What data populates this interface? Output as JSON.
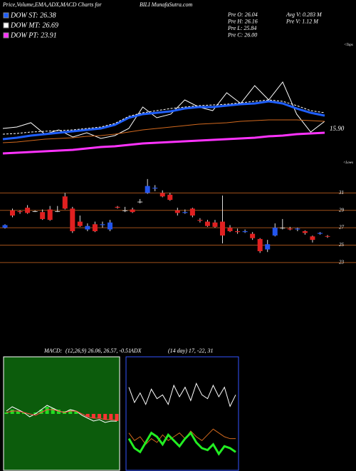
{
  "header": {
    "left": "Price,Volume,EMA,ADX,MACD Charts for",
    "right": "BILI MunafaSutra.com"
  },
  "stats": [
    [
      "Pre O: 26.04",
      "Avg V: 0.283 M"
    ],
    [
      "Pre H: 26.16",
      "Pre V: 1.12 M"
    ],
    [
      "Pre L: 25.84"
    ],
    [
      "Pre C: 26.00"
    ]
  ],
  "chart_data": [
    {
      "type": "line",
      "ylim": [
        12,
        36
      ],
      "annotations": [
        "15.90",
        "<Tops",
        "<Lows"
      ],
      "series": [
        {
          "color": "#ffffff",
          "style": "line",
          "values": [
            20,
            20.27,
            21.07,
            18.93,
            19.73,
            18.4,
            19.2,
            18.13,
            18.67,
            20,
            24,
            22,
            22.67,
            25.33,
            24,
            23.33,
            26.67,
            24.67,
            28,
            25.33,
            28.67,
            22.67,
            19.33,
            21.33
          ]
        },
        {
          "name": "DOW ST: 26.38",
          "color": "#1f5fff",
          "style": "thick",
          "values": [
            18,
            18.27,
            18.67,
            18.93,
            19.2,
            19.47,
            19.73,
            20,
            20.67,
            22,
            22.67,
            22.93,
            23.2,
            23.73,
            24,
            24,
            24.27,
            24.53,
            24.67,
            25.07,
            24.67,
            23.73,
            22.93,
            22.4
          ]
        },
        {
          "name": "DOW MT: 26.69",
          "color": "#ffffff",
          "style": "dashed",
          "values": [
            18.93,
            19.07,
            19.33,
            19.47,
            19.6,
            19.73,
            20,
            20.27,
            20.93,
            22.27,
            22.93,
            23.33,
            23.73,
            24,
            24.27,
            24.4,
            24.53,
            24.8,
            25.07,
            25.33,
            25.07,
            24.27,
            23.33,
            22.93
          ]
        },
        {
          "color": "#d2691e",
          "style": "line",
          "values": [
            17.33,
            17.47,
            17.73,
            18,
            18.13,
            18.27,
            18.53,
            18.67,
            18.93,
            19.33,
            19.73,
            20,
            20.27,
            20.53,
            20.8,
            20.93,
            21.07,
            21.33,
            21.47,
            21.6,
            21.6,
            21.6,
            21.47,
            21.33
          ]
        },
        {
          "name": "DOW PT: 23.91",
          "color": "#ff33ff",
          "style": "thick",
          "values": [
            15.33,
            15.47,
            15.6,
            15.73,
            15.87,
            16,
            16.27,
            16.53,
            16.67,
            16.93,
            17.2,
            17.33,
            17.47,
            17.6,
            17.73,
            17.87,
            18,
            18.13,
            18.27,
            18.53,
            18.67,
            18.93,
            19.07,
            19.2
          ]
        }
      ]
    },
    {
      "type": "candlestick",
      "ylim": [
        22,
        33
      ],
      "yticks": [
        31,
        29,
        27,
        25,
        23
      ],
      "grid_color": "#a0501a",
      "up_color": "#2255ee",
      "down_color": "#e02020",
      "open": [
        27.0,
        29.0,
        28.9,
        29.3,
        28.9,
        28.8,
        29.1,
        28.9,
        30.6,
        29.2,
        27.7,
        26.8,
        27.4,
        27.3,
        26.8,
        29.4,
        29.0,
        29.1,
        30.0,
        31.0,
        31.5,
        31.0,
        30.8,
        29.0,
        28.7,
        29.2,
        27.9,
        27.7,
        27.6,
        27.7,
        27.0,
        26.6,
        26.5,
        26.3,
        25.7,
        24.5,
        26.1,
        27.0,
        26.9,
        26.8,
        26.6,
        26.0,
        26.3,
        26.04
      ],
      "high": [
        27.4,
        29.2,
        29.0,
        29.6,
        29.0,
        29.1,
        29.5,
        29.5,
        31.0,
        29.4,
        28.4,
        27.5,
        27.7,
        27.7,
        27.9,
        29.5,
        29.4,
        29.3,
        30.3,
        32.6,
        31.9,
        31.3,
        31.0,
        29.3,
        29.1,
        29.3,
        28.1,
        27.9,
        27.9,
        30.7,
        27.3,
        26.9,
        26.8,
        26.5,
        25.8,
        25.6,
        27.5,
        28.0,
        27.1,
        27.0,
        26.7,
        26.1,
        26.5,
        26.16
      ],
      "low": [
        26.9,
        28.2,
        28.6,
        28.6,
        28.8,
        27.9,
        27.8,
        28.8,
        29.1,
        26.4,
        27.1,
        26.6,
        26.5,
        27.0,
        26.6,
        29.2,
        28.8,
        28.7,
        29.8,
        30.9,
        31.2,
        30.5,
        30.1,
        28.4,
        28.6,
        28.2,
        27.6,
        27.1,
        27.0,
        25.2,
        26.5,
        26.3,
        26.4,
        25.6,
        24.1,
        24.2,
        26.0,
        26.8,
        26.7,
        26.6,
        26.2,
        25.3,
        26.2,
        25.84
      ],
      "close": [
        27.3,
        28.4,
        28.8,
        28.7,
        28.9,
        28.0,
        27.9,
        28.9,
        29.2,
        26.6,
        27.2,
        27.2,
        26.6,
        27.4,
        27.6,
        29.3,
        29.0,
        28.8,
        30.0,
        31.8,
        31.6,
        30.6,
        30.2,
        28.7,
        28.8,
        28.4,
        27.8,
        27.2,
        27.1,
        26.1,
        26.6,
        26.5,
        26.6,
        25.8,
        24.3,
        25.1,
        27.0,
        27.0,
        26.8,
        26.9,
        26.4,
        25.6,
        26.4,
        26.0
      ]
    },
    {
      "type": "line",
      "label": "MACD:",
      "params": "(12,26,9) 26.06, 26.57, -0.51",
      "ylim": [
        -4,
        4
      ],
      "background": "#0c5c0c",
      "border": "#ffffff",
      "series": [
        {
          "color": "#22dd22",
          "negative_color": "#ff3333",
          "style": "bar",
          "values": [
            0.1,
            0.3,
            0.2,
            0.1,
            0,
            0.1,
            0.3,
            0.5,
            0.4,
            0.3,
            0.2,
            0.3,
            0.2,
            0,
            -0.2,
            -0.3,
            -0.3,
            -0.4,
            -0.4,
            -0.5
          ]
        },
        {
          "color": "#ffffff",
          "style": "line",
          "values": [
            0.2,
            0.5,
            0.3,
            0.1,
            -0.2,
            0,
            0.3,
            0.6,
            0.4,
            0.2,
            0.1,
            0.3,
            0.2,
            -0.1,
            -0.3,
            -0.5,
            -0.4,
            -0.6,
            -0.5,
            -0.51
          ]
        },
        {
          "color": "#ff4444",
          "style": "line",
          "values": [
            0.1,
            0.2,
            0.2,
            0.1,
            0,
            -0.1,
            0.1,
            0.3,
            0.3,
            0.2,
            0.1,
            0.2,
            0.2,
            0,
            -0.2,
            -0.3,
            -0.3,
            -0.4,
            -0.4,
            -0.45
          ]
        }
      ]
    },
    {
      "type": "line",
      "label": "ADX",
      "params": "(14 day) 17, -22, 31",
      "ylim": [
        0,
        60
      ],
      "background": "#000000",
      "border": "#3355ff",
      "series": [
        {
          "color": "#ffffff",
          "style": "line",
          "values": [
            44,
            36,
            41,
            35,
            43,
            38,
            40,
            35,
            45,
            39,
            44,
            37,
            46,
            40,
            38,
            45,
            39,
            44,
            34,
            40
          ]
        },
        {
          "color": "#d2691e",
          "style": "line",
          "values": [
            20,
            16,
            18,
            14,
            17,
            15,
            19,
            16,
            18,
            20,
            17,
            21,
            18,
            16,
            19,
            22,
            20,
            18,
            17,
            17
          ]
        },
        {
          "color": "#22ee22",
          "style": "thick",
          "values": [
            17,
            12,
            10,
            15,
            20,
            18,
            14,
            19,
            16,
            13,
            17,
            20,
            15,
            12,
            11,
            14,
            9,
            13,
            12,
            10
          ]
        }
      ]
    }
  ]
}
